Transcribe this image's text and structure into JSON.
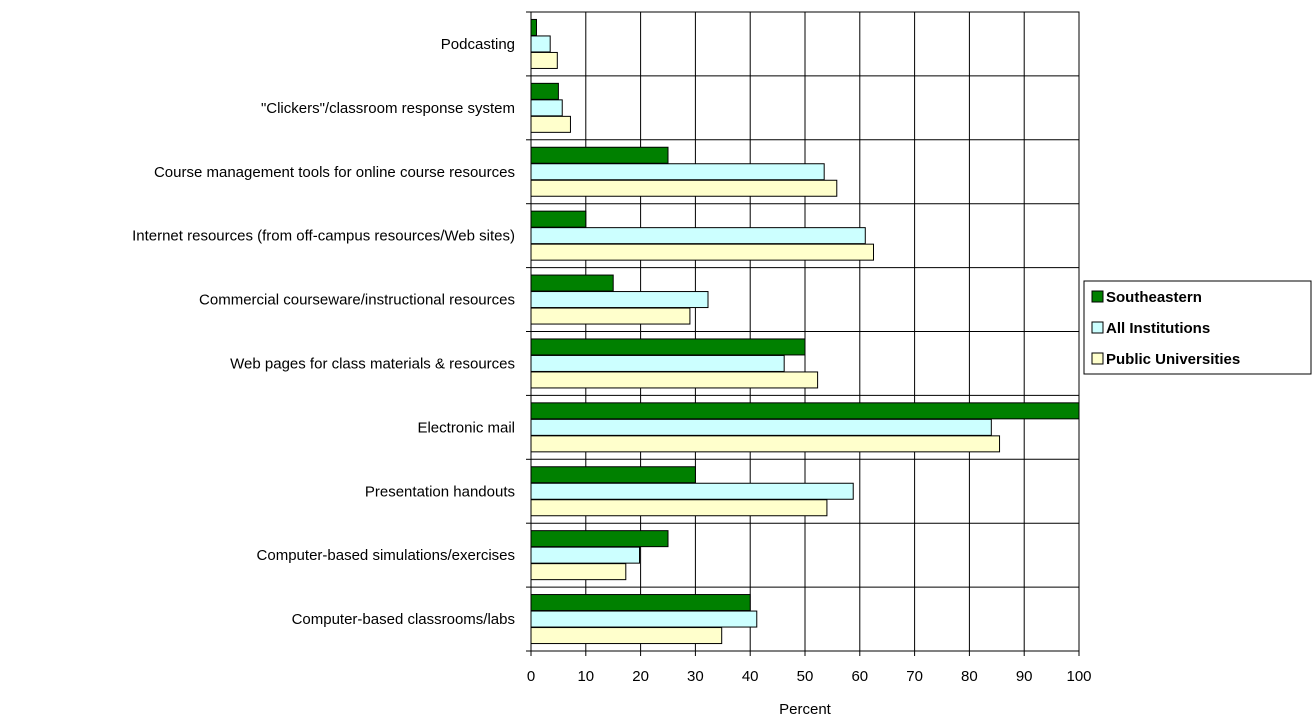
{
  "chart_data": {
    "type": "bar",
    "orientation": "horizontal",
    "categories": [
      "Podcasting",
      "\"Clickers\"/classroom response system",
      "Course management tools for online course resources",
      "Internet resources (from off-campus resources/Web sites)",
      "Commercial courseware/instructional resources",
      "Web pages for class materials & resources",
      "Electronic mail",
      "Presentation handouts",
      "Computer-based simulations/exercises",
      "Computer-based classrooms/labs"
    ],
    "series": [
      {
        "name": "Southeastern",
        "color": "#008000",
        "values": [
          1,
          5,
          25,
          10,
          15,
          50,
          100,
          30,
          25,
          40
        ]
      },
      {
        "name": "All Institutions",
        "color": "#ccffff",
        "values": [
          3.5,
          5.7,
          53.5,
          61,
          32.3,
          46.2,
          84,
          58.8,
          19.8,
          41.2
        ]
      },
      {
        "name": "Public Universities",
        "color": "#ffffcc",
        "values": [
          4.8,
          7.2,
          55.8,
          62.5,
          29,
          52.3,
          85.5,
          54,
          17.3,
          34.8
        ]
      }
    ],
    "xlabel": "Percent",
    "xlim": [
      0,
      100
    ],
    "xticks": [
      0,
      10,
      20,
      30,
      40,
      50,
      60,
      70,
      80,
      90,
      100
    ],
    "grid": true,
    "legend_position": "right"
  }
}
